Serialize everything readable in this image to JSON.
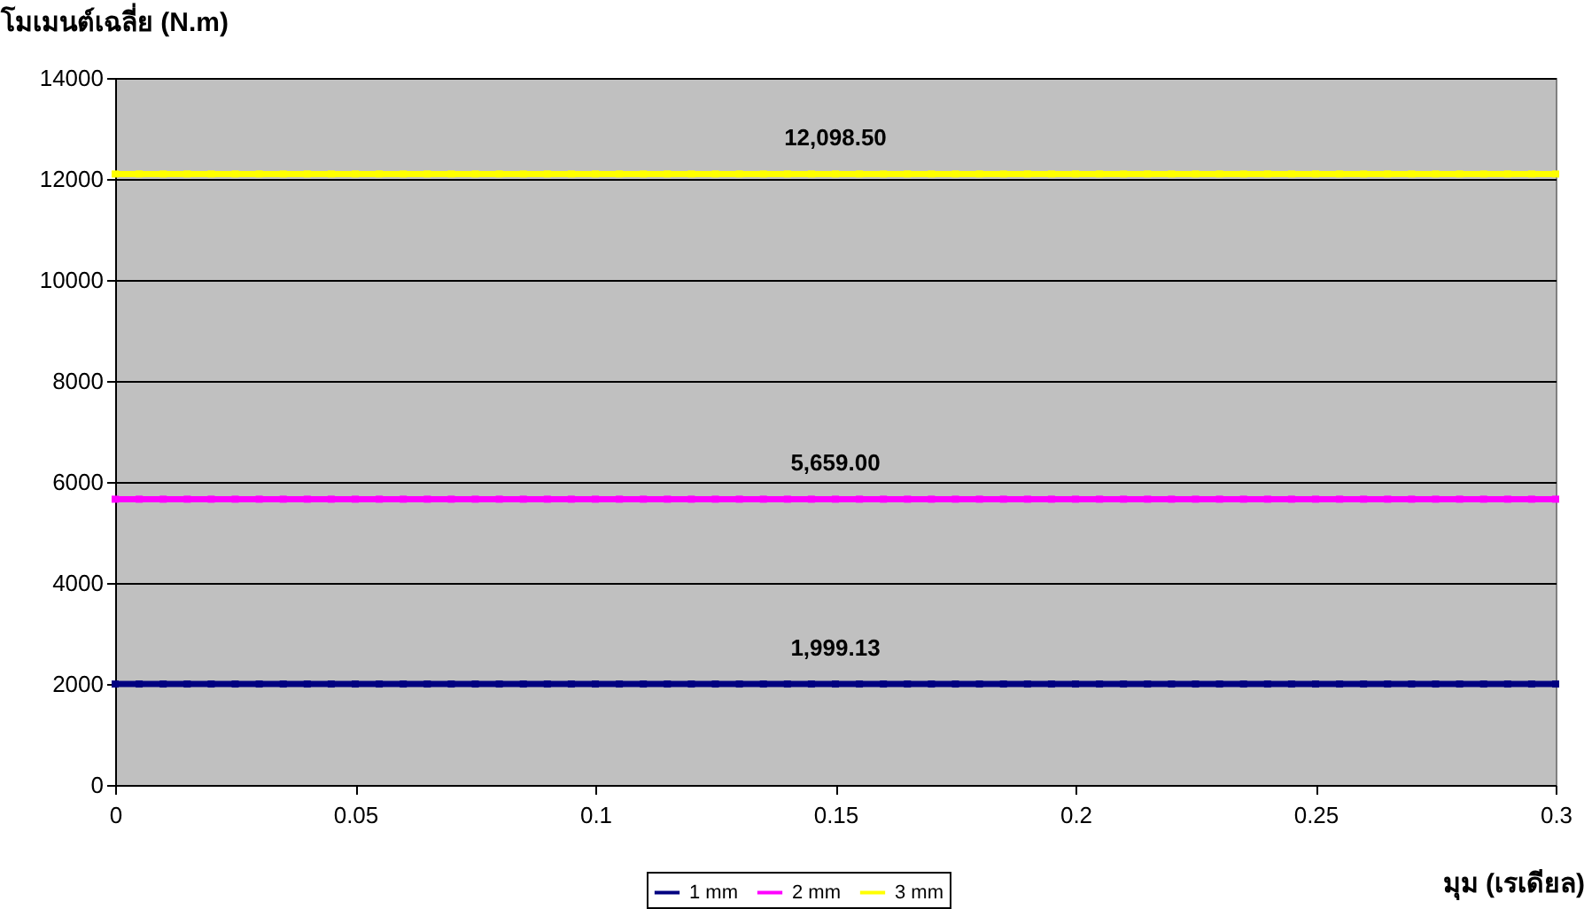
{
  "chart_data": {
    "type": "line",
    "ylabel": "โมเมนต์เฉลี่ย (N.m)",
    "xlabel": "มุม (เรเดียล)",
    "x": [
      0,
      0.005,
      0.01,
      0.015,
      0.02,
      0.025,
      0.03,
      0.035,
      0.04,
      0.045,
      0.05,
      0.055,
      0.06,
      0.065,
      0.07,
      0.075,
      0.08,
      0.085,
      0.09,
      0.095,
      0.1,
      0.105,
      0.11,
      0.115,
      0.12,
      0.125,
      0.13,
      0.135,
      0.14,
      0.145,
      0.15,
      0.155,
      0.16,
      0.165,
      0.17,
      0.175,
      0.18,
      0.185,
      0.19,
      0.195,
      0.2,
      0.205,
      0.21,
      0.215,
      0.22,
      0.225,
      0.23,
      0.235,
      0.24,
      0.245,
      0.25,
      0.255,
      0.26,
      0.265,
      0.27,
      0.275,
      0.28,
      0.285,
      0.29,
      0.295,
      0.3
    ],
    "series": [
      {
        "name": "1 mm",
        "color": "#000080",
        "values": [
          1999.13,
          1999.13,
          1999.13,
          1999.13,
          1999.13,
          1999.13,
          1999.13,
          1999.13,
          1999.13,
          1999.13,
          1999.13,
          1999.13,
          1999.13,
          1999.13,
          1999.13,
          1999.13,
          1999.13,
          1999.13,
          1999.13,
          1999.13,
          1999.13,
          1999.13,
          1999.13,
          1999.13,
          1999.13,
          1999.13,
          1999.13,
          1999.13,
          1999.13,
          1999.13,
          1999.13,
          1999.13,
          1999.13,
          1999.13,
          1999.13,
          1999.13,
          1999.13,
          1999.13,
          1999.13,
          1999.13,
          1999.13,
          1999.13,
          1999.13,
          1999.13,
          1999.13,
          1999.13,
          1999.13,
          1999.13,
          1999.13,
          1999.13,
          1999.13,
          1999.13,
          1999.13,
          1999.13,
          1999.13,
          1999.13,
          1999.13,
          1999.13,
          1999.13,
          1999.13,
          1999.13
        ],
        "value_labels": [
          null,
          null,
          null,
          null,
          null,
          null,
          null,
          null,
          null,
          null,
          null,
          null,
          null,
          null,
          null,
          null,
          null,
          null,
          null,
          null,
          null,
          null,
          null,
          null,
          null,
          null,
          null,
          null,
          null,
          null,
          "1,999.13",
          null,
          null,
          null,
          null,
          null,
          null,
          null,
          null,
          null,
          null,
          null,
          null,
          null,
          null,
          null,
          null,
          null,
          null,
          null,
          null,
          null,
          null,
          null,
          null,
          null,
          null,
          null,
          null,
          null,
          null
        ]
      },
      {
        "name": "2 mm",
        "color": "#ff00ff",
        "values": [
          5659,
          5659,
          5659,
          5659,
          5659,
          5659,
          5659,
          5659,
          5659,
          5659,
          5659,
          5659,
          5659,
          5659,
          5659,
          5659,
          5659,
          5659,
          5659,
          5659,
          5659,
          5659,
          5659,
          5659,
          5659,
          5659,
          5659,
          5659,
          5659,
          5659,
          5659,
          5659,
          5659,
          5659,
          5659,
          5659,
          5659,
          5659,
          5659,
          5659,
          5659,
          5659,
          5659,
          5659,
          5659,
          5659,
          5659,
          5659,
          5659,
          5659,
          5659,
          5659,
          5659,
          5659,
          5659,
          5659,
          5659,
          5659,
          5659,
          5659,
          5659
        ],
        "value_labels": [
          null,
          null,
          null,
          null,
          null,
          null,
          null,
          null,
          null,
          null,
          null,
          null,
          null,
          null,
          null,
          null,
          null,
          null,
          null,
          null,
          null,
          null,
          null,
          null,
          null,
          null,
          null,
          null,
          null,
          null,
          "5,659.00",
          null,
          null,
          null,
          null,
          null,
          null,
          null,
          null,
          null,
          null,
          null,
          null,
          null,
          null,
          null,
          null,
          null,
          null,
          null,
          null,
          null,
          null,
          null,
          null,
          null,
          null,
          null,
          null,
          null,
          null
        ]
      },
      {
        "name": "3 mm",
        "color": "#ffff00",
        "values": [
          12098.5,
          12098.5,
          12098.5,
          12098.5,
          12098.5,
          12098.5,
          12098.5,
          12098.5,
          12098.5,
          12098.5,
          12098.5,
          12098.5,
          12098.5,
          12098.5,
          12098.5,
          12098.5,
          12098.5,
          12098.5,
          12098.5,
          12098.5,
          12098.5,
          12098.5,
          12098.5,
          12098.5,
          12098.5,
          12098.5,
          12098.5,
          12098.5,
          12098.5,
          12098.5,
          12098.5,
          12098.5,
          12098.5,
          12098.5,
          12098.5,
          12098.5,
          12098.5,
          12098.5,
          12098.5,
          12098.5,
          12098.5,
          12098.5,
          12098.5,
          12098.5,
          12098.5,
          12098.5,
          12098.5,
          12098.5,
          12098.5,
          12098.5,
          12098.5,
          12098.5,
          12098.5,
          12098.5,
          12098.5,
          12098.5,
          12098.5,
          12098.5,
          12098.5,
          12098.5,
          12098.5
        ],
        "value_labels": [
          null,
          null,
          null,
          null,
          null,
          null,
          null,
          null,
          null,
          null,
          null,
          null,
          null,
          null,
          null,
          null,
          null,
          null,
          null,
          null,
          null,
          null,
          null,
          null,
          null,
          null,
          null,
          null,
          null,
          null,
          "12,098.50",
          null,
          null,
          null,
          null,
          null,
          null,
          null,
          null,
          null,
          null,
          null,
          null,
          null,
          null,
          null,
          null,
          null,
          null,
          null,
          null,
          null,
          null,
          null,
          null,
          null,
          null,
          null,
          null,
          null,
          null
        ]
      }
    ],
    "xlim": [
      0,
      0.3
    ],
    "xticks": [
      0,
      0.05,
      0.1,
      0.15,
      0.2,
      0.25,
      0.3
    ],
    "ylim": [
      0,
      14000
    ],
    "yticks": [
      0,
      2000,
      4000,
      6000,
      8000,
      10000,
      12000,
      14000
    ],
    "grid": "y",
    "legend": "bottom",
    "marker": "square",
    "line_style": "solid"
  }
}
